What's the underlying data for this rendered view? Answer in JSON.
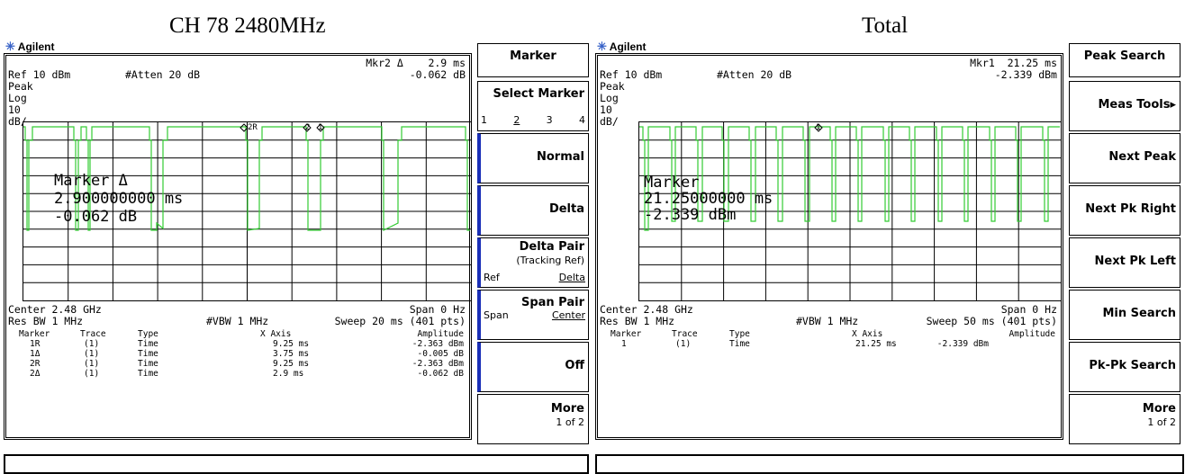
{
  "captions": {
    "left": "CH 78 2480MHz",
    "right": "Total"
  },
  "panels": [
    {
      "logo": "Agilent",
      "marker_readout": "Mkr2 Δ    2.9 ms",
      "ref": "Ref 10 dBm",
      "atten": "#Atten 20 dB",
      "marker_amp": "-0.062 dB",
      "side_labels": [
        "Peak",
        "Log",
        "10",
        "dB/"
      ],
      "overlay_lines": [
        "Marker Δ",
        "2.900000000 ms",
        "-0.062 dB"
      ],
      "center": "Center 2.48 GHz",
      "span": "Span 0 Hz",
      "rbw": "Res BW 1 MHz",
      "vbw": "#VBW 1 MHz",
      "sweep": "Sweep 20 ms (401 pts)",
      "table_headers": [
        "Marker",
        "Trace",
        "Type",
        "X Axis",
        "Amplitude"
      ],
      "table_rows": [
        [
          "1R",
          "(1)",
          "Time",
          "9.25 ms",
          "-2.363 dBm"
        ],
        [
          "1Δ",
          "(1)",
          "Time",
          "3.75 ms",
          "-0.005 dB"
        ],
        [
          "2R",
          "(1)",
          "Time",
          "9.25 ms",
          "-2.363 dBm"
        ],
        [
          "2Δ",
          "(1)",
          "Time",
          "2.9 ms",
          "-0.062 dB"
        ]
      ],
      "marker_tags": [
        "2R",
        "2",
        "1"
      ],
      "softkeys": {
        "title": "Marker",
        "select_marker": "Select Marker",
        "select_nums": [
          "1",
          "2",
          "3",
          "4"
        ],
        "normal": "Normal",
        "delta": "Delta",
        "delta_pair": "Delta Pair",
        "delta_pair_sub": "(Tracking Ref)",
        "delta_pair_left": "Ref",
        "delta_pair_right": "Delta",
        "span_pair": "Span Pair",
        "span_pair_left": "Span",
        "span_pair_right": "Center",
        "off": "Off",
        "more": "More",
        "more_sub": "1 of 2"
      }
    },
    {
      "logo": "Agilent",
      "marker_readout": "Mkr1  21.25 ms",
      "ref": "Ref 10 dBm",
      "atten": "#Atten 20 dB",
      "marker_amp": "-2.339 dBm",
      "side_labels": [
        "Peak",
        "Log",
        "10",
        "dB/"
      ],
      "overlay_lines": [
        "Marker",
        "21.25000000 ms",
        "-2.339 dBm"
      ],
      "center": "Center 2.48 GHz",
      "span": "Span 0 Hz",
      "rbw": "Res BW 1 MHz",
      "vbw": "#VBW 1 MHz",
      "sweep": "Sweep 50 ms (401 pts)",
      "table_headers": [
        "Marker",
        "Trace",
        "Type",
        "X Axis",
        "Amplitude"
      ],
      "table_rows": [
        [
          "1",
          "(1)",
          "Time",
          "21.25 ms",
          "-2.339 dBm"
        ]
      ],
      "marker_tags": [
        "1"
      ],
      "softkeys": {
        "title": "Peak Search",
        "meas_tools": "Meas Tools▸",
        "next_peak": "Next Peak",
        "next_pk_right": "Next Pk Right",
        "next_pk_left": "Next Pk Left",
        "min_search": "Min Search",
        "pk_pk_search": "Pk-Pk Search",
        "more": "More",
        "more_sub": "1 of 2"
      }
    }
  ],
  "colors": {
    "trace": "#33cc33",
    "softkey_accent": "#1a2fb8",
    "logo": "#3a64c8"
  }
}
